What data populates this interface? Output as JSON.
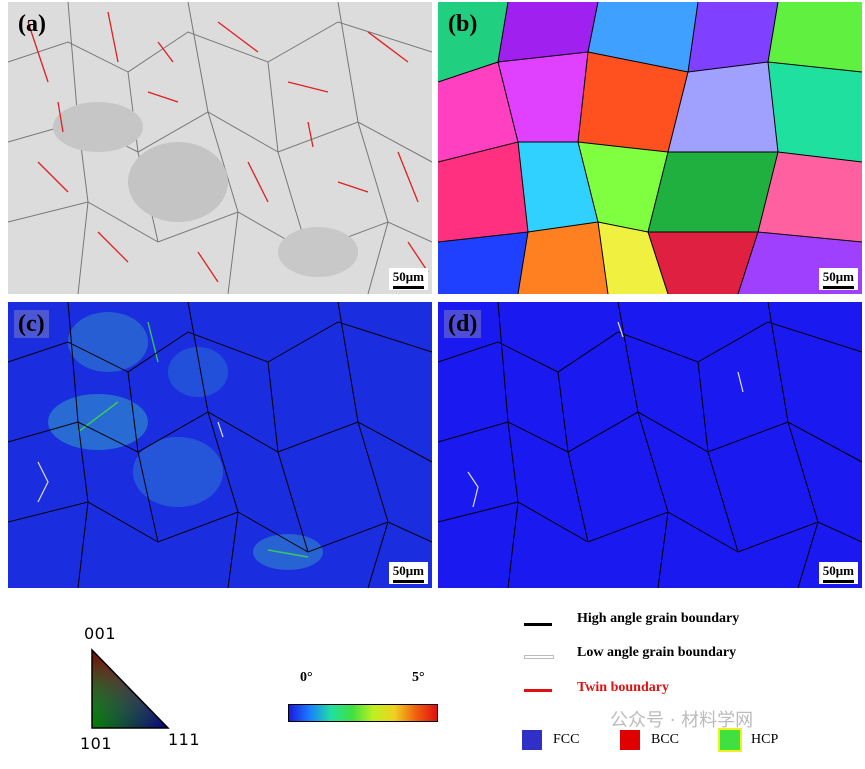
{
  "panels": [
    {
      "label": "(a)",
      "scale": "50μm"
    },
    {
      "label": "(b)",
      "scale": "50μm"
    },
    {
      "label": "(c)",
      "scale": "50μm"
    },
    {
      "label": "(d)",
      "scale": "50μm"
    }
  ],
  "ipf": {
    "top": "001",
    "left": "101",
    "right": "111"
  },
  "colorbar": {
    "min": "0°",
    "max": "5°"
  },
  "boundary_legend": [
    {
      "label": "High angle grain boundary",
      "color": "#000000"
    },
    {
      "label": "Low angle grain boundary",
      "color": "#dddddd"
    },
    {
      "label": "Twin boundary",
      "color": "#e01010"
    }
  ],
  "phase_legend": [
    {
      "label": "FCC",
      "color": "#3030c8"
    },
    {
      "label": "BCC",
      "color": "#e00000"
    },
    {
      "label": "HCP",
      "color": "#40e040"
    }
  ],
  "watermark": "公众号 · 材料学网"
}
